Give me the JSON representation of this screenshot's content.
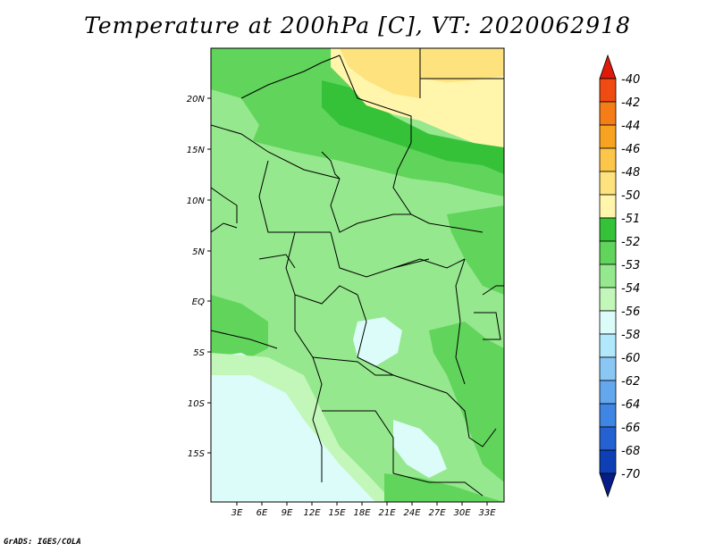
{
  "title": "Temperature at 200hPa [C], VT: 2020062918",
  "credit": "GrADS: IGES/COLA",
  "map": {
    "lon_labels": [
      "3E",
      "6E",
      "9E",
      "12E",
      "15E",
      "18E",
      "21E",
      "24E",
      "27E",
      "30E",
      "33E"
    ],
    "lat_labels": [
      "20N",
      "15N",
      "10N",
      "5N",
      "EQ",
      "5S",
      "10S",
      "15S"
    ]
  },
  "colorbar": {
    "labels": [
      "-40",
      "-42",
      "-44",
      "-46",
      "-48",
      "-50",
      "-51",
      "-52",
      "-53",
      "-54",
      "-56",
      "-58",
      "-60",
      "-62",
      "-64",
      "-66",
      "-68",
      "-70"
    ],
    "colors": [
      "#e01a0a",
      "#f04b12",
      "#f57d18",
      "#f7a321",
      "#fbc64a",
      "#fde27e",
      "#fff5ab",
      "#35c238",
      "#61d45b",
      "#95e88d",
      "#c2f7b9",
      "#dbfcf9",
      "#b2e8fb",
      "#8ac7f5",
      "#63a8ee",
      "#3f86e4",
      "#2462d1",
      "#0e3fb4",
      "#061c86"
    ]
  },
  "legend_colors": {
    "orange_dark": "#f7a321",
    "yellow": "#fde27e",
    "pale_yellow": "#fff5ab",
    "green_dark": "#35c238",
    "green_mid": "#61d45b",
    "green_light": "#95e88d",
    "green_pale": "#c2f7b9",
    "cyan_pale": "#dbfcf9"
  }
}
